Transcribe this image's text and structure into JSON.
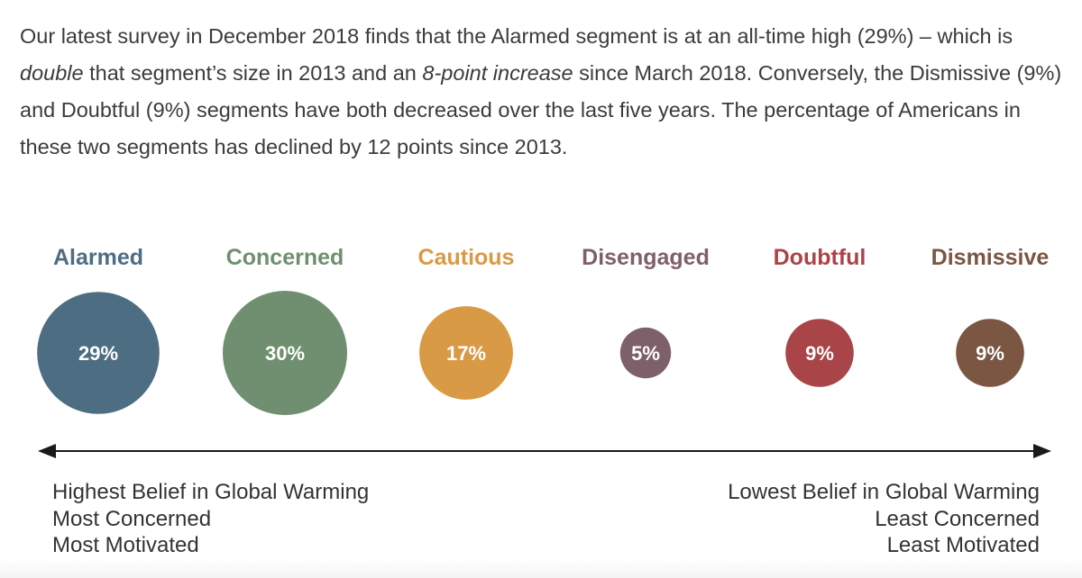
{
  "intro": {
    "p1": "Our latest survey in December 2018 finds that the Alarmed segment is at an all-time high (29%) – which is ",
    "em1": "double",
    "p2": " that segment’s size in 2013 and an ",
    "em2": "8-point increase",
    "p3": " since March 2018. Conversely, the Dismissive (9%) and Doubtful (9%) segments have both decreased over the last five years. The percentage of Americans in these two segments has declined by 12 points since 2013."
  },
  "chart_data": {
    "type": "bubble",
    "categories": [
      "Alarmed",
      "Concerned",
      "Cautious",
      "Disengaged",
      "Doubtful",
      "Dismissive"
    ],
    "values": [
      29,
      30,
      17,
      5,
      9,
      9
    ],
    "value_labels": [
      "29%",
      "30%",
      "17%",
      "5%",
      "9%",
      "9%"
    ],
    "colors": [
      "#4d6d82",
      "#6f8f70",
      "#d99a45",
      "#7e606b",
      "#a94448",
      "#7a5643"
    ],
    "label_colors": [
      "#4d6d82",
      "#6f8f70",
      "#d99a45",
      "#7e606b",
      "#a94448",
      "#7a5643"
    ],
    "axis": {
      "left_caption": [
        "Highest Belief in Global Warming",
        "Most Concerned",
        "Most Motivated"
      ],
      "right_caption": [
        "Lowest Belief in Global Warming",
        "Least Concerned",
        "Least Motivated"
      ]
    }
  }
}
